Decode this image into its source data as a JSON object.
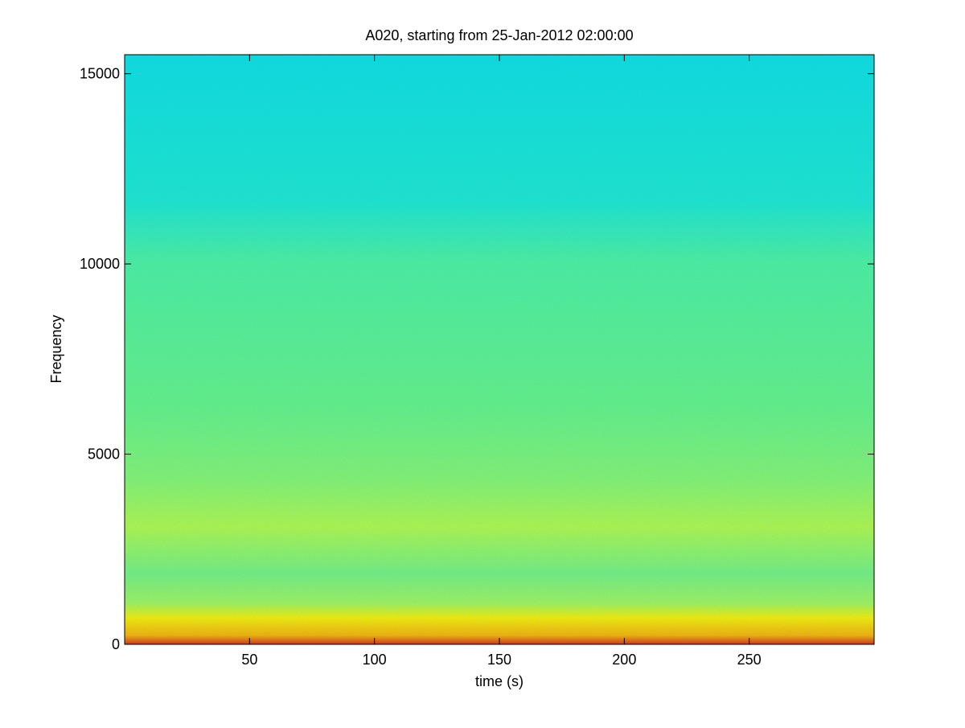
{
  "chart_data": {
    "type": "spectrogram",
    "title": "A020, starting from 25-Jan-2012 02:00:00",
    "x_label": "time (s)",
    "y_label": "Frequency",
    "xlim": [
      0,
      300
    ],
    "ylim": [
      0,
      15500
    ],
    "xticks": [
      50,
      100,
      150,
      200,
      250
    ],
    "yticks": [
      0,
      5000,
      10000,
      15000
    ]
  }
}
